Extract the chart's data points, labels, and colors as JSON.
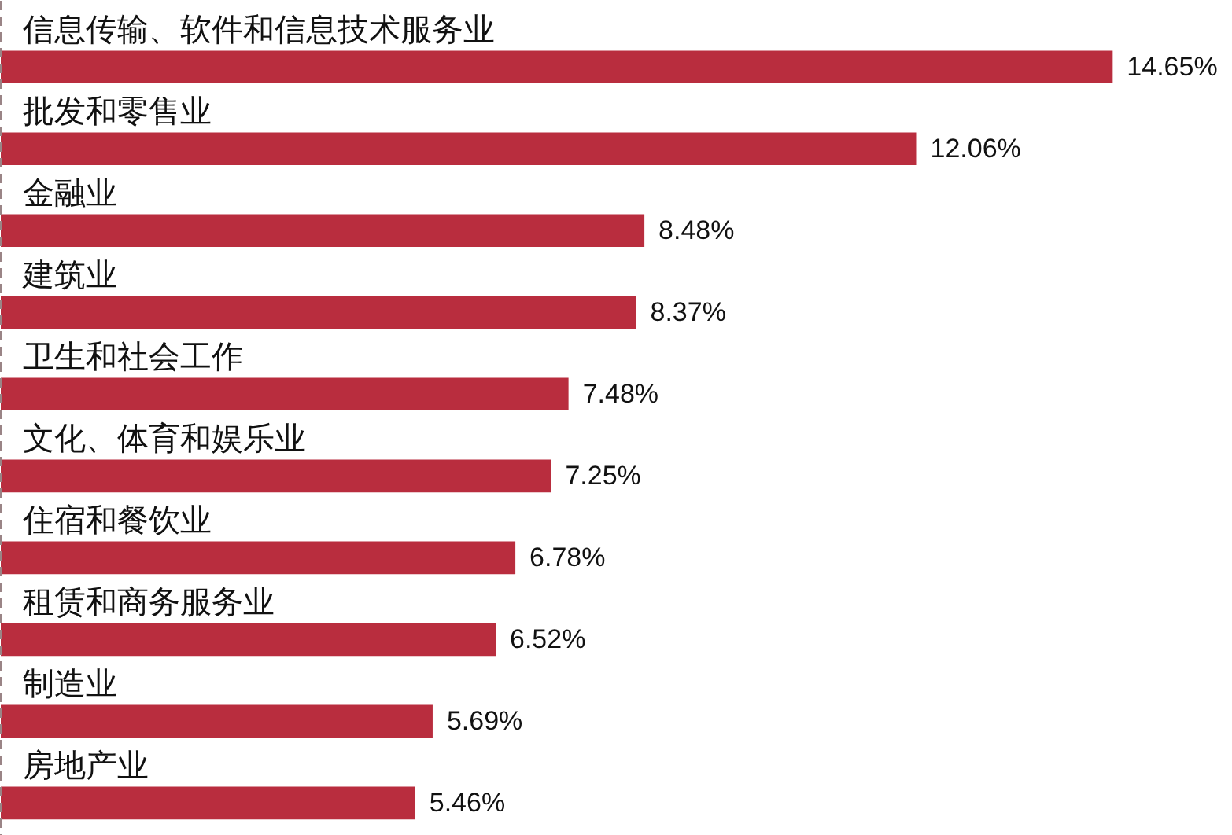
{
  "chart_data": {
    "type": "bar",
    "orientation": "horizontal",
    "color": "#b92d3e",
    "grid": false,
    "tick_labels": "y",
    "categories": [
      "信息传输、软件和信息技术服务业",
      "批发和零售业",
      "金融业",
      "建筑业",
      "卫生和社会工作",
      "文化、体育和娱乐业",
      "住宿和餐饮业",
      "租赁和商务服务业",
      "制造业",
      "房地产业"
    ],
    "values": [
      14.65,
      12.06,
      8.48,
      8.37,
      7.48,
      7.25,
      6.78,
      6.52,
      5.69,
      5.46
    ],
    "value_labels": [
      "14.65%",
      "12.06%",
      "8.48%",
      "8.37%",
      "7.48%",
      "7.25%",
      "6.78%",
      "6.52%",
      "5.69%",
      "5.46%"
    ]
  }
}
